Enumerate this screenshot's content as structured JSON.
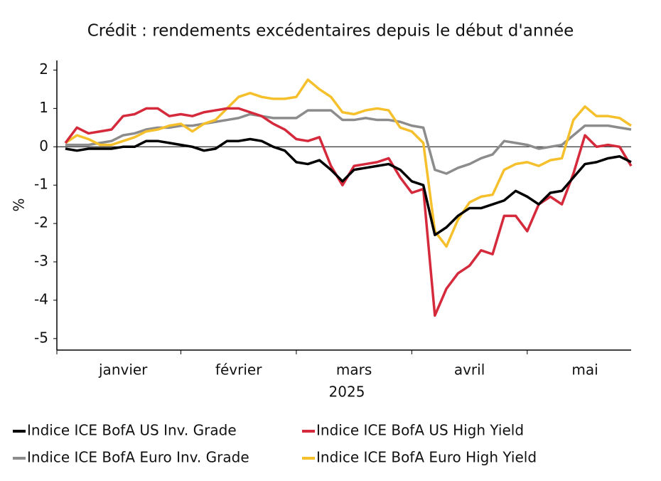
{
  "chart_data": {
    "type": "line",
    "title": "Crédit : rendements excédentaires depuis le début d'année",
    "ylabel": "%",
    "xlabel": "2025",
    "categories": [
      null,
      null,
      null,
      null,
      null,
      "janvier",
      null,
      null,
      null,
      null,
      null,
      null,
      null,
      null,
      null,
      "février",
      null,
      null,
      null,
      null,
      null,
      null,
      null,
      null,
      null,
      "mars",
      null,
      null,
      null,
      null,
      null,
      null,
      null,
      null,
      null,
      "avril",
      null,
      null,
      null,
      null,
      null,
      null,
      null,
      null,
      null,
      "mai",
      null,
      null,
      null,
      null
    ],
    "ylim": [
      -5.3,
      2.25
    ],
    "yticks": [
      2,
      1,
      0,
      -1,
      -2,
      -3,
      -4,
      -5
    ],
    "zero_line": true,
    "series": [
      {
        "name": "Indice ICE BofA US Inv. Grade",
        "color": "#000000",
        "values": [
          -0.05,
          -0.1,
          -0.05,
          -0.05,
          -0.05,
          0.0,
          0.0,
          0.15,
          0.15,
          0.1,
          0.05,
          0.0,
          -0.1,
          -0.05,
          0.15,
          0.15,
          0.2,
          0.15,
          0.0,
          -0.1,
          -0.4,
          -0.45,
          -0.35,
          -0.6,
          -0.9,
          -0.6,
          -0.55,
          -0.5,
          -0.45,
          -0.6,
          -0.9,
          -1.0,
          -2.3,
          -2.1,
          -1.8,
          -1.6,
          -1.6,
          -1.5,
          -1.4,
          -1.15,
          -1.3,
          -1.5,
          -1.2,
          -1.15,
          -0.8,
          -0.45,
          -0.4,
          -0.3,
          -0.25,
          -0.4
        ]
      },
      {
        "name": "Indice ICE BofA US High Yield",
        "color": "#d42a3c",
        "values": [
          0.1,
          0.5,
          0.35,
          0.4,
          0.45,
          0.8,
          0.85,
          1.0,
          1.0,
          0.8,
          0.85,
          0.8,
          0.9,
          0.95,
          1.0,
          1.0,
          0.9,
          0.8,
          0.6,
          0.45,
          0.2,
          0.15,
          0.25,
          -0.5,
          -1.0,
          -0.5,
          -0.45,
          -0.4,
          -0.3,
          -0.8,
          -1.2,
          -1.1,
          -4.4,
          -3.7,
          -3.3,
          -3.1,
          -2.7,
          -2.8,
          -1.8,
          -1.8,
          -2.2,
          -1.5,
          -1.3,
          -1.5,
          -0.7,
          0.3,
          0.0,
          0.05,
          0.0,
          -0.5
        ]
      },
      {
        "name": "Indice ICE BofA Euro Inv. Grade",
        "color": "#8c8c8c",
        "values": [
          0.05,
          0.05,
          0.05,
          0.1,
          0.15,
          0.3,
          0.35,
          0.45,
          0.5,
          0.5,
          0.55,
          0.55,
          0.6,
          0.65,
          0.7,
          0.75,
          0.85,
          0.8,
          0.75,
          0.75,
          0.75,
          0.95,
          0.95,
          0.95,
          0.7,
          0.7,
          0.75,
          0.7,
          0.7,
          0.65,
          0.55,
          0.5,
          -0.6,
          -0.7,
          -0.55,
          -0.45,
          -0.3,
          -0.2,
          0.15,
          0.1,
          0.05,
          -0.05,
          0.0,
          0.05,
          0.3,
          0.55,
          0.55,
          0.55,
          0.5,
          0.45
        ]
      },
      {
        "name": "Indice ICE BofA Euro High Yield",
        "color": "#f5c02c",
        "values": [
          0.1,
          0.3,
          0.2,
          0.05,
          0.05,
          0.15,
          0.25,
          0.4,
          0.45,
          0.55,
          0.6,
          0.4,
          0.6,
          0.7,
          1.0,
          1.3,
          1.4,
          1.3,
          1.25,
          1.25,
          1.3,
          1.75,
          1.5,
          1.3,
          0.9,
          0.85,
          0.95,
          1.0,
          0.95,
          0.5,
          0.4,
          0.1,
          -2.2,
          -2.6,
          -1.9,
          -1.45,
          -1.3,
          -1.25,
          -0.6,
          -0.45,
          -0.4,
          -0.5,
          -0.35,
          -0.3,
          0.7,
          1.05,
          0.8,
          0.8,
          0.75,
          0.55
        ]
      }
    ]
  }
}
